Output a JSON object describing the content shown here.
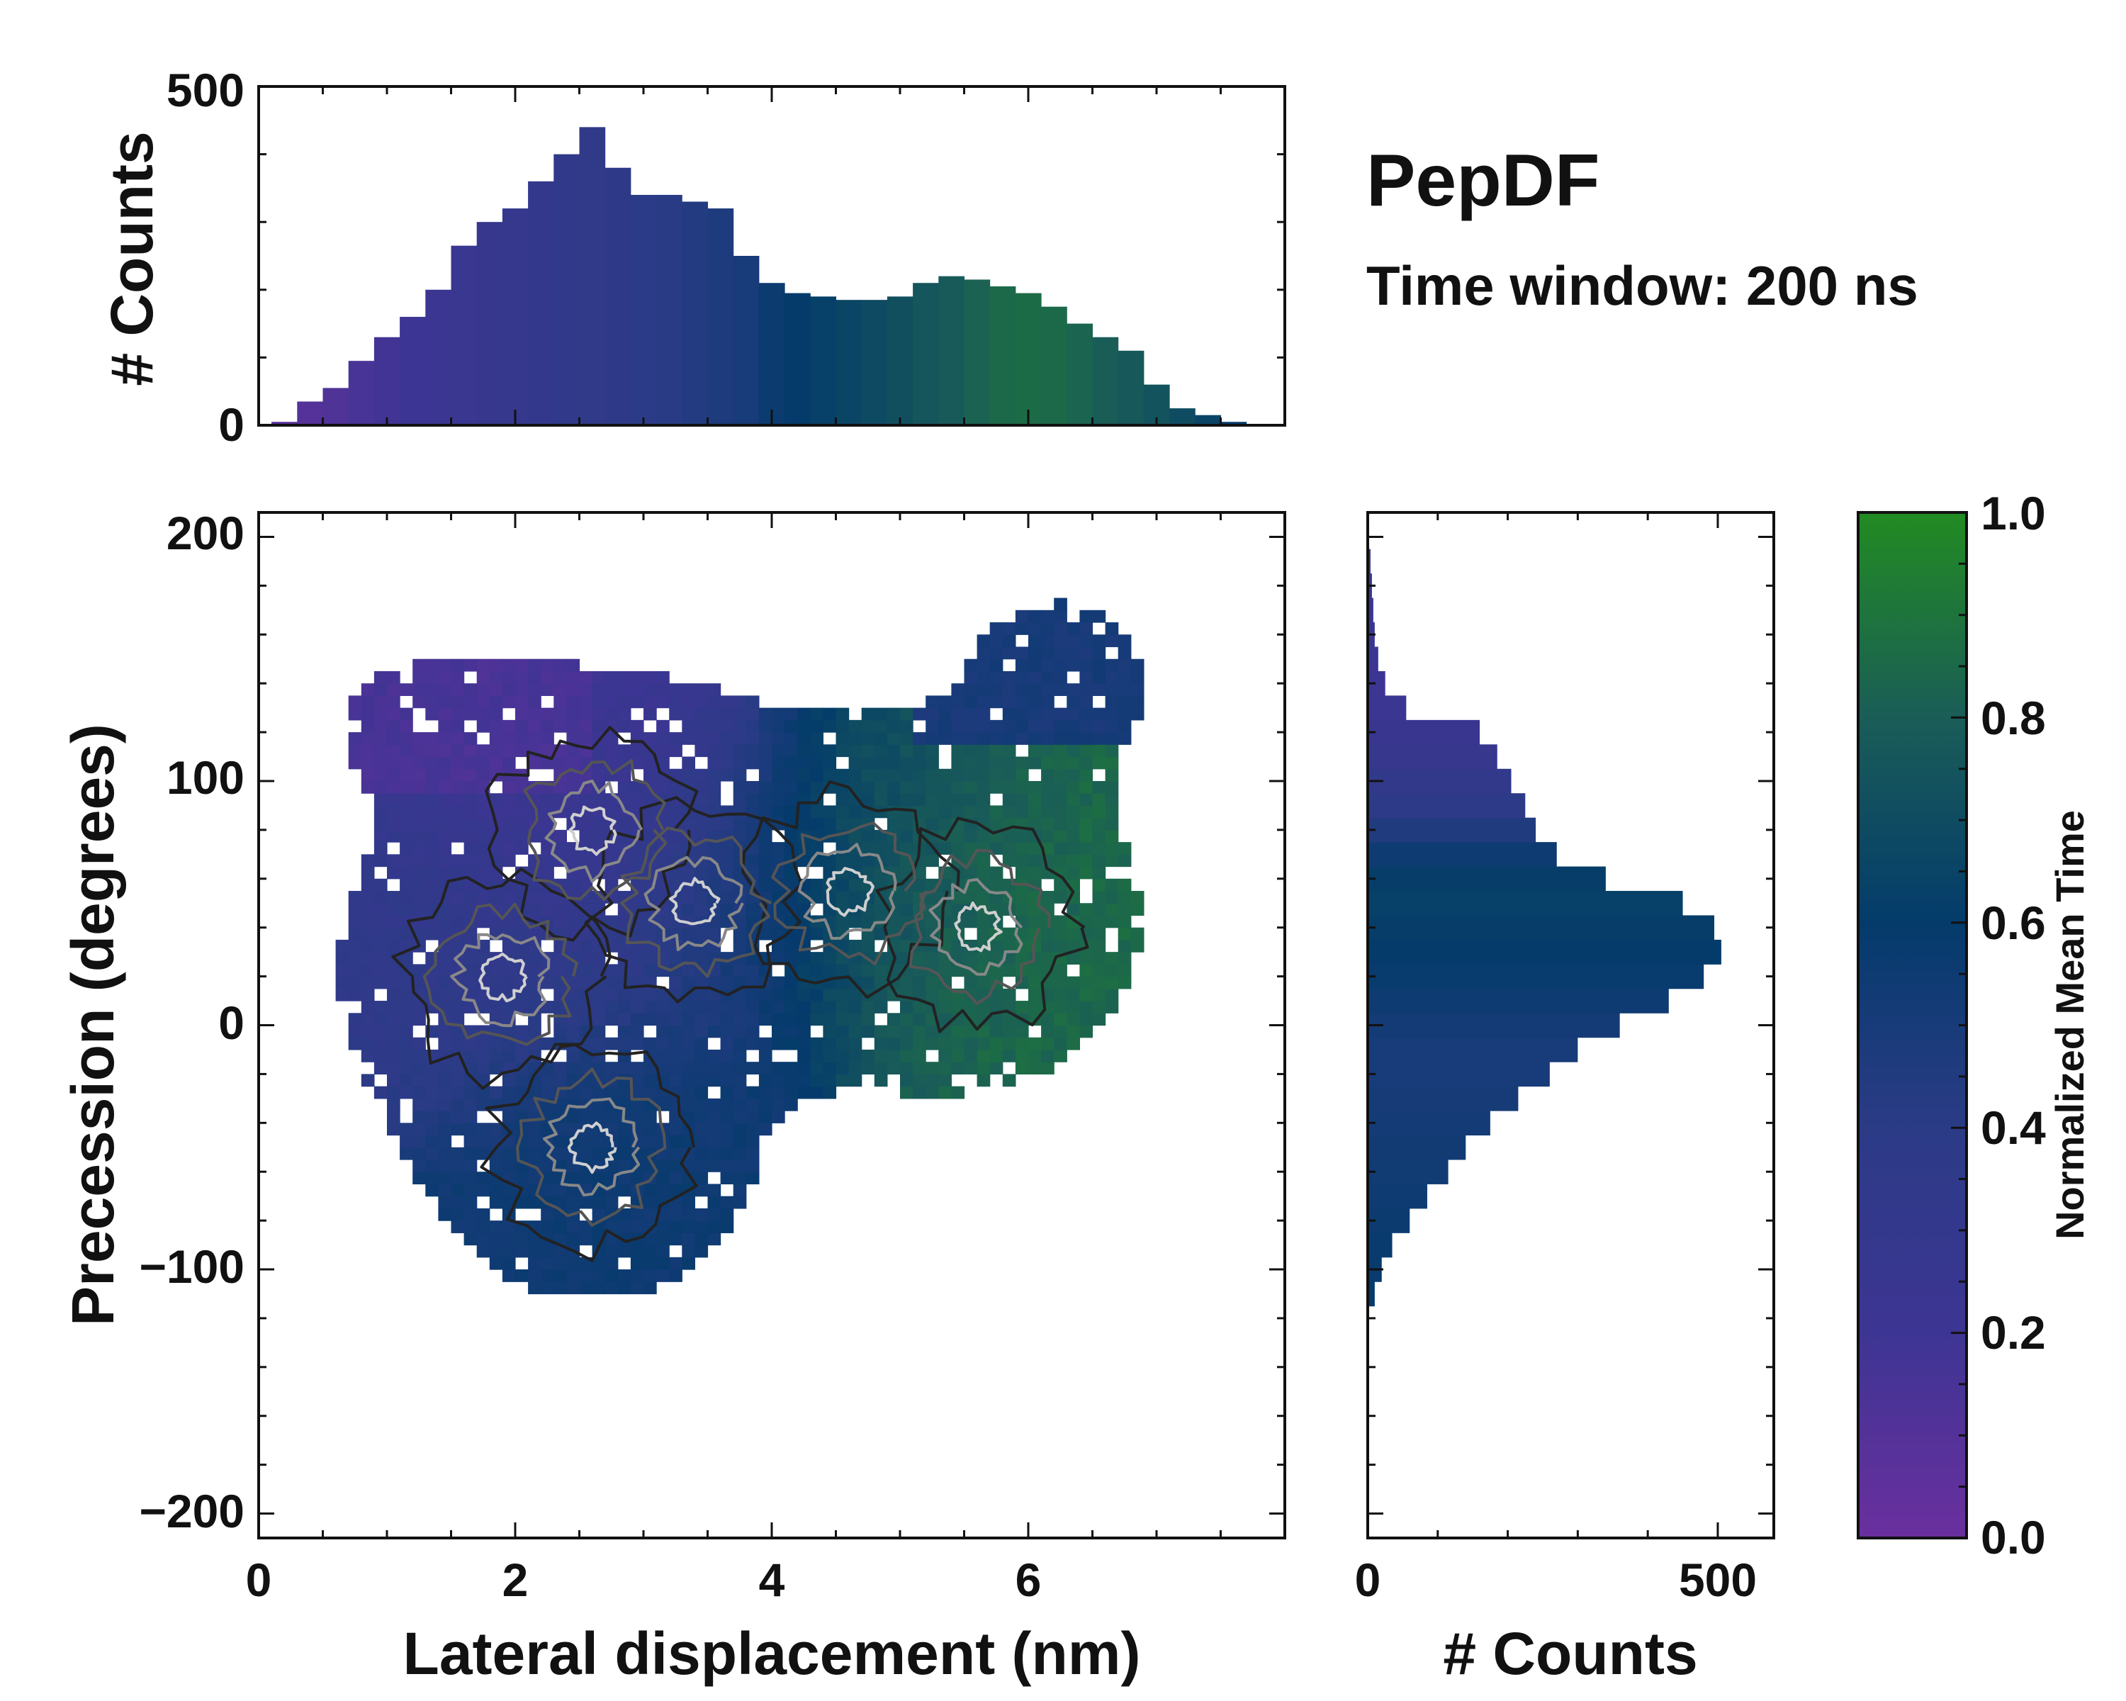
{
  "chart_data": {
    "type": "heatmap",
    "title": "PepDF",
    "subtitle": "Time window: 200 ns",
    "main": {
      "xlabel": "Lateral displacement (nm)",
      "ylabel": "Precession (degrees)",
      "xlim": [
        0,
        8
      ],
      "ylim": [
        -210,
        210
      ],
      "xticks": [
        "0",
        "2",
        "4",
        "6"
      ],
      "xtick_values": [
        0,
        2,
        4,
        6
      ],
      "yticks": [
        "200",
        "100",
        "0",
        "−100",
        "−200"
      ],
      "ytick_values": [
        200,
        100,
        0,
        -100,
        -200
      ],
      "density_peaks": [
        {
          "x": 2.6,
          "y": 80,
          "time": 0.2
        },
        {
          "x": 1.9,
          "y": 20,
          "time": 0.35
        },
        {
          "x": 3.4,
          "y": 50,
          "time": 0.45
        },
        {
          "x": 4.6,
          "y": 55,
          "time": 0.7
        },
        {
          "x": 5.6,
          "y": 40,
          "time": 0.85
        },
        {
          "x": 2.6,
          "y": -50,
          "time": 0.55
        }
      ],
      "contour_levels": [
        "lowest",
        "low",
        "mid",
        "high",
        "highest"
      ]
    },
    "top_histogram": {
      "ylabel": "# Counts",
      "ylim": [
        0,
        500
      ],
      "yticks": [
        "0",
        "500"
      ],
      "ytick_values": [
        0,
        500
      ],
      "bin_centers": [
        0.2,
        0.4,
        0.6,
        0.8,
        1.0,
        1.2,
        1.4,
        1.6,
        1.8,
        2.0,
        2.2,
        2.4,
        2.6,
        2.8,
        3.0,
        3.2,
        3.4,
        3.6,
        3.8,
        4.0,
        4.2,
        4.4,
        4.6,
        4.8,
        5.0,
        5.2,
        5.4,
        5.6,
        5.8,
        6.0,
        6.2,
        6.4,
        6.6,
        6.8,
        7.0,
        7.2,
        7.4,
        7.6
      ],
      "counts": [
        5,
        35,
        55,
        95,
        130,
        160,
        200,
        265,
        300,
        320,
        360,
        400,
        440,
        380,
        340,
        340,
        330,
        320,
        250,
        210,
        195,
        190,
        185,
        185,
        190,
        210,
        220,
        215,
        205,
        195,
        175,
        150,
        130,
        110,
        60,
        25,
        15,
        5
      ],
      "mean_time": [
        0.08,
        0.1,
        0.12,
        0.15,
        0.18,
        0.2,
        0.22,
        0.25,
        0.27,
        0.29,
        0.3,
        0.33,
        0.35,
        0.37,
        0.39,
        0.41,
        0.44,
        0.47,
        0.5,
        0.56,
        0.6,
        0.63,
        0.66,
        0.69,
        0.72,
        0.75,
        0.78,
        0.82,
        0.85,
        0.86,
        0.85,
        0.83,
        0.8,
        0.77,
        0.74,
        0.7,
        0.65,
        0.6
      ]
    },
    "right_histogram": {
      "xlabel": "# Counts",
      "xlim": [
        0,
        580
      ],
      "xticks": [
        "0",
        "500"
      ],
      "xtick_values": [
        0,
        500
      ],
      "bin_centers": [
        -110,
        -100,
        -90,
        -80,
        -70,
        -60,
        -50,
        -40,
        -30,
        -20,
        -10,
        0,
        10,
        20,
        30,
        40,
        50,
        60,
        70,
        80,
        90,
        100,
        110,
        120,
        130,
        140,
        150,
        160,
        170,
        180,
        190
      ],
      "counts": [
        10,
        20,
        35,
        60,
        85,
        115,
        140,
        175,
        215,
        260,
        300,
        360,
        430,
        480,
        505,
        495,
        450,
        340,
        270,
        240,
        225,
        205,
        185,
        160,
        55,
        25,
        15,
        10,
        8,
        6,
        4
      ],
      "mean_time": [
        0.6,
        0.58,
        0.57,
        0.56,
        0.55,
        0.54,
        0.53,
        0.52,
        0.51,
        0.5,
        0.5,
        0.52,
        0.55,
        0.58,
        0.6,
        0.62,
        0.63,
        0.62,
        0.55,
        0.45,
        0.38,
        0.32,
        0.27,
        0.24,
        0.22,
        0.2,
        0.2,
        0.22,
        0.25,
        0.28,
        0.3
      ]
    },
    "colorbar": {
      "label": "Normalized Mean Time",
      "ticks": [
        "0.0",
        "0.2",
        "0.4",
        "0.6",
        "0.8",
        "1.0"
      ],
      "tick_values": [
        0.0,
        0.2,
        0.4,
        0.6,
        0.8,
        1.0
      ],
      "colormap": [
        "#6a2f9e",
        "#3d3593",
        "#2b3b86",
        "#043b6b",
        "#1a5d57",
        "#228b22"
      ]
    }
  }
}
